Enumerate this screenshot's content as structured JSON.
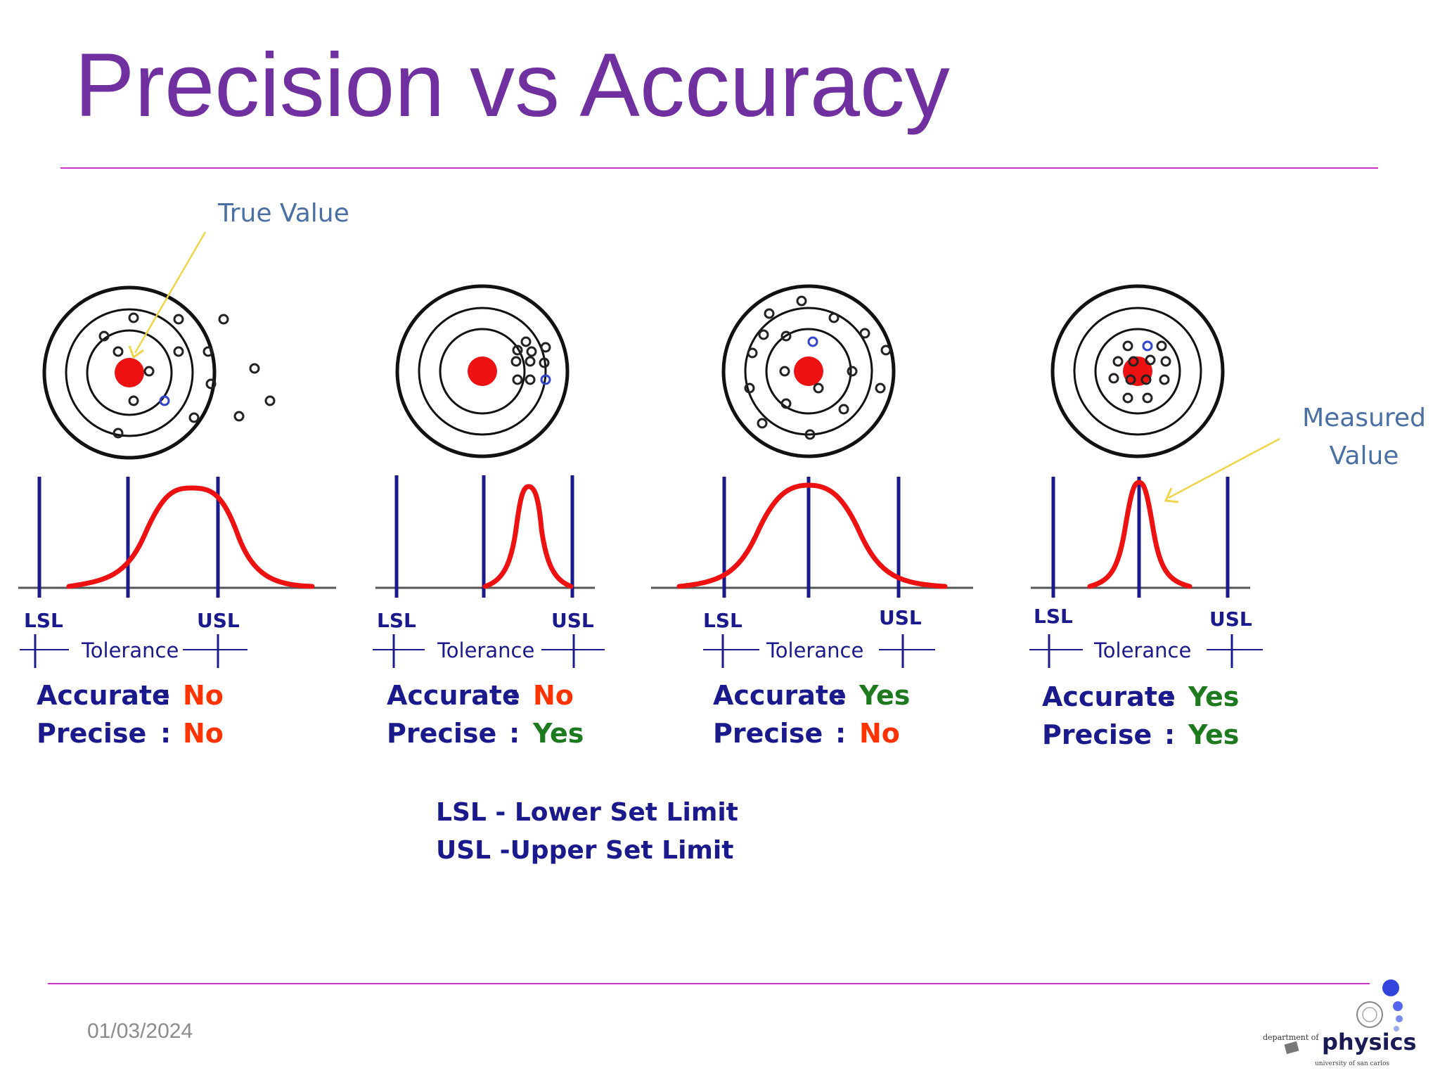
{
  "slide": {
    "title": "Precision vs Accuracy",
    "date": "01/03/2024"
  },
  "annotations": {
    "true_value": "True Value",
    "measured_value_line1": "Measured",
    "measured_value_line2": "Value"
  },
  "labels": {
    "lsl": "LSL",
    "usl": "USL",
    "tolerance": "Tolerance",
    "accurate": "Accurate",
    "precise": "Precise",
    "colon": ":"
  },
  "panels": [
    {
      "accurate": "No",
      "precise": "No"
    },
    {
      "accurate": "No",
      "precise": "Yes"
    },
    {
      "accurate": "Yes",
      "precise": "No"
    },
    {
      "accurate": "Yes",
      "precise": "Yes"
    }
  ],
  "legend": {
    "lsl_definition": "LSL - Lower Set Limit",
    "usl_definition": "USL -Upper Set Limit"
  },
  "logo": {
    "line1": "department of",
    "line2": "physics",
    "line3": "university of san carlos"
  },
  "colors": {
    "title": "#7030a0",
    "rule": "#cc33cc",
    "navy": "#1a1a8c",
    "curve": "#ee1111",
    "no": "#ff3300",
    "yes": "#1e7a1e",
    "annotation": "#4a6fa5",
    "arrow": "#f0d44a"
  }
}
